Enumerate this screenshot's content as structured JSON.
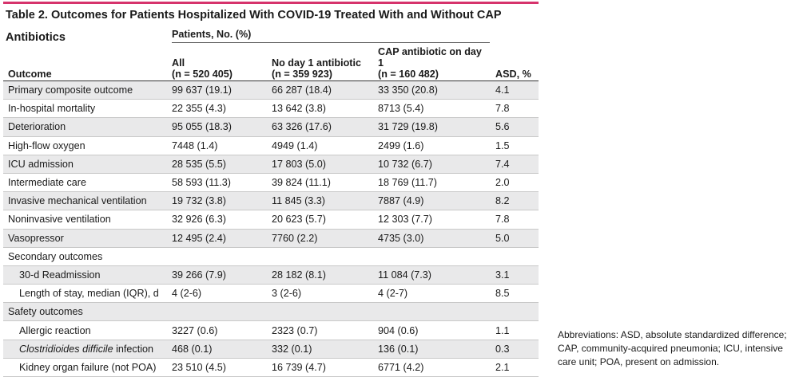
{
  "title": "Table 2. Outcomes for Patients Hospitalized With COVID-19 Treated With and Without CAP Antibiotics",
  "accent_color": "#d6336c",
  "header": {
    "outcome": "Outcome",
    "group": "Patients, No. (%)",
    "all": "All",
    "all_n": "(n = 520 405)",
    "no_abx": "No day 1 antibiotic",
    "no_abx_n": "(n = 359 923)",
    "cap_abx": "CAP antibiotic on day 1",
    "cap_abx_n": "(n = 160 482)",
    "asd": "ASD, %"
  },
  "rows": [
    {
      "label": "Primary composite outcome",
      "all": "99 637 (19.1)",
      "no": "66 287 (18.4)",
      "cap": "33 350 (20.8)",
      "asd": "4.1"
    },
    {
      "label": "In-hospital mortality",
      "all": "22 355 (4.3)",
      "no": "13 642 (3.8)",
      "cap": "8713 (5.4)",
      "asd": "7.8"
    },
    {
      "label": "Deterioration",
      "all": "95 055 (18.3)",
      "no": "63 326 (17.6)",
      "cap": "31 729 (19.8)",
      "asd": "5.6"
    },
    {
      "label": "High-flow oxygen",
      "all": "7448 (1.4)",
      "no": "4949 (1.4)",
      "cap": "2499 (1.6)",
      "asd": "1.5"
    },
    {
      "label": "ICU admission",
      "all": "28 535 (5.5)",
      "no": "17 803 (5.0)",
      "cap": "10 732 (6.7)",
      "asd": "7.4"
    },
    {
      "label": "Intermediate care",
      "all": "58 593 (11.3)",
      "no": "39 824 (11.1)",
      "cap": "18 769 (11.7)",
      "asd": "2.0"
    },
    {
      "label": "Invasive mechanical ventilation",
      "all": "19 732 (3.8)",
      "no": "11 845 (3.3)",
      "cap": "7887 (4.9)",
      "asd": "8.2"
    },
    {
      "label": "Noninvasive ventilation",
      "all": "32 926 (6.3)",
      "no": "20 623 (5.7)",
      "cap": "12 303 (7.7)",
      "asd": "7.8"
    },
    {
      "label": "Vasopressor",
      "all": "12 495 (2.4)",
      "no": "7760 (2.2)",
      "cap": "4735 (3.0)",
      "asd": "5.0"
    },
    {
      "label": "Secondary outcomes",
      "all": "",
      "no": "",
      "cap": "",
      "asd": ""
    },
    {
      "label": "30-d Readmission",
      "indent": true,
      "all": "39 266 (7.9)",
      "no": "28 182 (8.1)",
      "cap": "11 084 (7.3)",
      "asd": "3.1"
    },
    {
      "label": "Length of stay, median (IQR), d",
      "indent": true,
      "all": "4 (2-6)",
      "no": "3 (2-6)",
      "cap": "4 (2-7)",
      "asd": "8.5"
    },
    {
      "label": "Safety outcomes",
      "all": "",
      "no": "",
      "cap": "",
      "asd": ""
    },
    {
      "label": "Allergic reaction",
      "indent": true,
      "all": "3227 (0.6)",
      "no": "2323 (0.7)",
      "cap": "904 (0.6)",
      "asd": "1.1"
    },
    {
      "label_italic": "Clostridioides difficile",
      "label_rest": " infection",
      "indent": true,
      "all": "468 (0.1)",
      "no": "332 (0.1)",
      "cap": "136 (0.1)",
      "asd": "0.3"
    },
    {
      "label": "Kidney organ failure (not POA)",
      "indent": true,
      "all": "23 510 (4.5)",
      "no": "16 739 (4.7)",
      "cap": "6771 (4.2)",
      "asd": "2.1"
    }
  ],
  "footnote": "Abbreviations: ASD, absolute standardized difference; CAP, community-acquired pneumonia; ICU, intensive care unit; POA, present on admission."
}
